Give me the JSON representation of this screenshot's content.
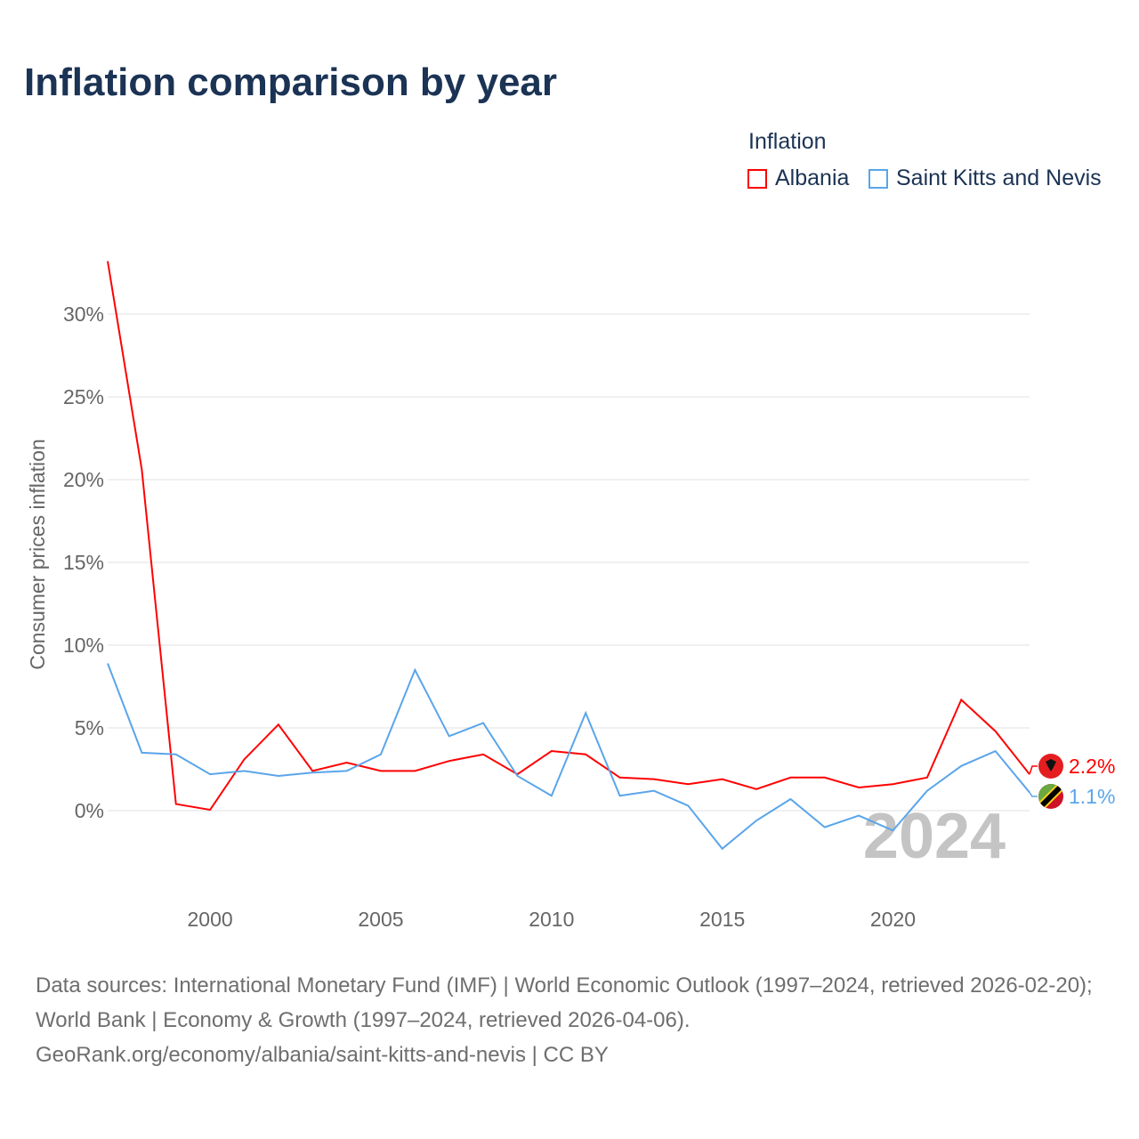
{
  "chart_data": {
    "type": "line",
    "title": "Inflation comparison by year",
    "xlabel": "",
    "ylabel": "Consumer prices inflation",
    "legend_title": "Inflation",
    "legend_position": "top-right",
    "x": [
      1997,
      1998,
      1999,
      2000,
      2001,
      2002,
      2003,
      2004,
      2005,
      2006,
      2007,
      2008,
      2009,
      2010,
      2011,
      2012,
      2013,
      2014,
      2015,
      2016,
      2017,
      2018,
      2019,
      2020,
      2021,
      2022,
      2023,
      2024
    ],
    "xlim": [
      1997,
      2024
    ],
    "ylim": [
      -5,
      33.5
    ],
    "x_ticks": [
      2000,
      2005,
      2010,
      2015,
      2020
    ],
    "y_ticks": [
      0,
      5,
      10,
      15,
      20,
      25,
      30
    ],
    "y_tick_labels": [
      "0%",
      "5%",
      "10%",
      "15%",
      "20%",
      "25%",
      "30%"
    ],
    "grid": true,
    "year_watermark": "2024",
    "series": [
      {
        "name": "Albania",
        "color": "#ff0000",
        "end_label": "2.2%",
        "values": [
          33.2,
          20.6,
          0.4,
          0.05,
          3.1,
          5.2,
          2.4,
          2.9,
          2.4,
          2.4,
          3.0,
          3.4,
          2.2,
          3.6,
          3.4,
          2.0,
          1.9,
          1.6,
          1.9,
          1.3,
          2.0,
          2.0,
          1.4,
          1.6,
          2.0,
          6.7,
          4.8,
          2.2
        ]
      },
      {
        "name": "Saint Kitts and Nevis",
        "color": "#5aa5ea",
        "end_label": "1.1%",
        "values": [
          8.9,
          3.5,
          3.4,
          2.2,
          2.4,
          2.1,
          2.3,
          2.4,
          3.4,
          8.5,
          4.5,
          5.3,
          2.1,
          0.9,
          5.9,
          0.9,
          1.2,
          0.3,
          -2.3,
          -0.6,
          0.7,
          -1.0,
          -0.3,
          -1.2,
          1.2,
          2.7,
          3.6,
          1.1
        ]
      }
    ]
  },
  "footer": {
    "sources": "Data sources: International Monetary Fund (IMF) | World Economic Outlook (1997–2024, retrieved 2026-02-20); World Bank | Economy & Growth (1997–2024, retrieved 2026-04-06).",
    "link": "GeoRank.org/economy/albania/saint-kitts-and-nevis | CC BY"
  }
}
